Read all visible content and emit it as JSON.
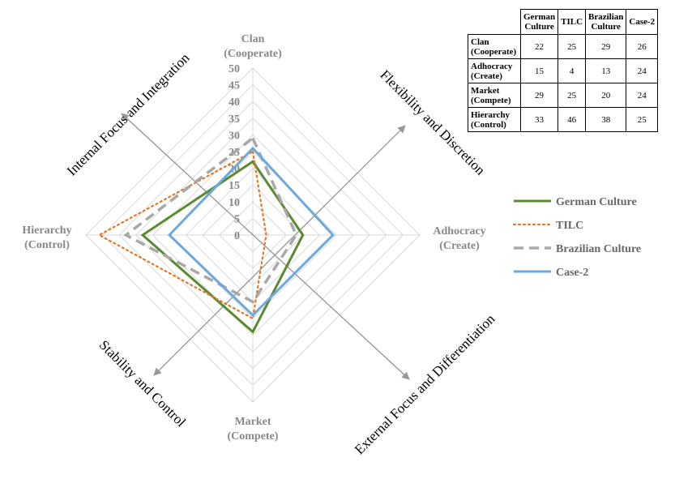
{
  "chart_data": {
    "type": "radar",
    "axes": [
      "Clan\n(Cooperate)",
      "Adhocracy\n(Create)",
      "Market\n(Compete)",
      "Hierarchy\n(Control)"
    ],
    "ticks": [
      "0",
      "5",
      "10",
      "15",
      "20",
      "25",
      "30",
      "35",
      "40",
      "45",
      "50"
    ],
    "rmax": 50,
    "series": [
      {
        "name": "German Culture",
        "values": [
          22,
          15,
          29,
          33
        ],
        "color": "#5a8a32",
        "style": "solid"
      },
      {
        "name": "TILC",
        "values": [
          25,
          4,
          25,
          46
        ],
        "color": "#e07a2a",
        "style": "dotted"
      },
      {
        "name": "Brazilian Culture",
        "values": [
          29,
          13,
          20,
          38
        ],
        "color": "#a8a8a8",
        "style": "dashed"
      },
      {
        "name": "Case-2",
        "values": [
          26,
          24,
          24,
          25
        ],
        "color": "#6fa8dc",
        "style": "solid"
      }
    ],
    "diagonal_labels": {
      "top_left": "Internal Focus and Integration",
      "top_right": "Flexibility and Discretion",
      "bottom_right": "External Focus and Differentiation",
      "bottom_left": "Stability and Control"
    },
    "legend": "right"
  },
  "table": {
    "columns": [
      "German\nCulture",
      "TILC",
      "Brazilian\nCulture",
      "Case-2"
    ],
    "rows": [
      {
        "label": "Clan\n(Cooperate)",
        "values": [
          "22",
          "25",
          "29",
          "26"
        ]
      },
      {
        "label": "Adhocracy\n(Create)",
        "values": [
          "15",
          "4",
          "13",
          "24"
        ]
      },
      {
        "label": "Market\n(Compete)",
        "values": [
          "29",
          "25",
          "20",
          "24"
        ]
      },
      {
        "label": "Hierarchy\n(Control)",
        "values": [
          "33",
          "46",
          "38",
          "25"
        ]
      }
    ]
  }
}
